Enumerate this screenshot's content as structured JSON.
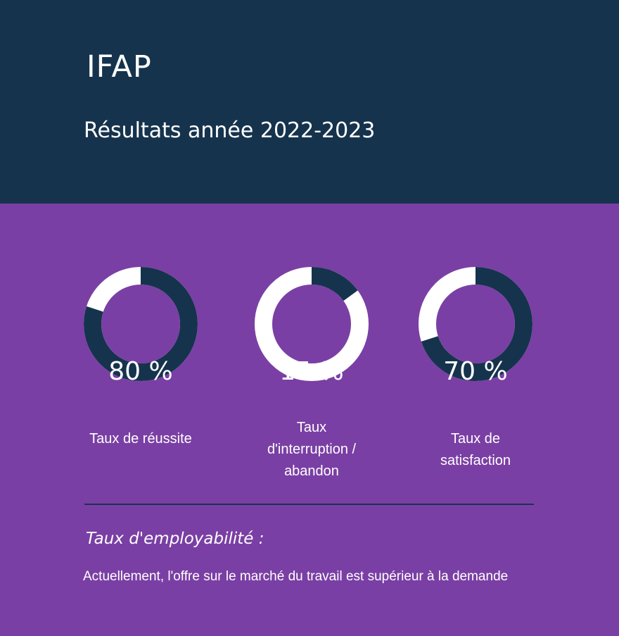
{
  "header": {
    "org_name": "IFAP",
    "subtitle": "Résultats année 2022-2023"
  },
  "colors": {
    "header_bg": "#16334d",
    "main_bg": "#7a3fa4",
    "ring_filled": "#16334d",
    "ring_track": "#ffffff"
  },
  "stats": [
    {
      "percent": 80,
      "display": "80 %",
      "label_lines": [
        "Taux de réussite"
      ]
    },
    {
      "percent": 15,
      "display": "15 %",
      "label_lines": [
        "Taux",
        "d'interruption /",
        "abandon"
      ]
    },
    {
      "percent": 70,
      "display": "70 %",
      "label_lines": [
        "Taux de",
        "satisfaction"
      ]
    }
  ],
  "employability": {
    "title": "Taux d'employabilité :",
    "text": "Actuellement, l'offre sur le marché du travail est supérieur à la demande"
  }
}
